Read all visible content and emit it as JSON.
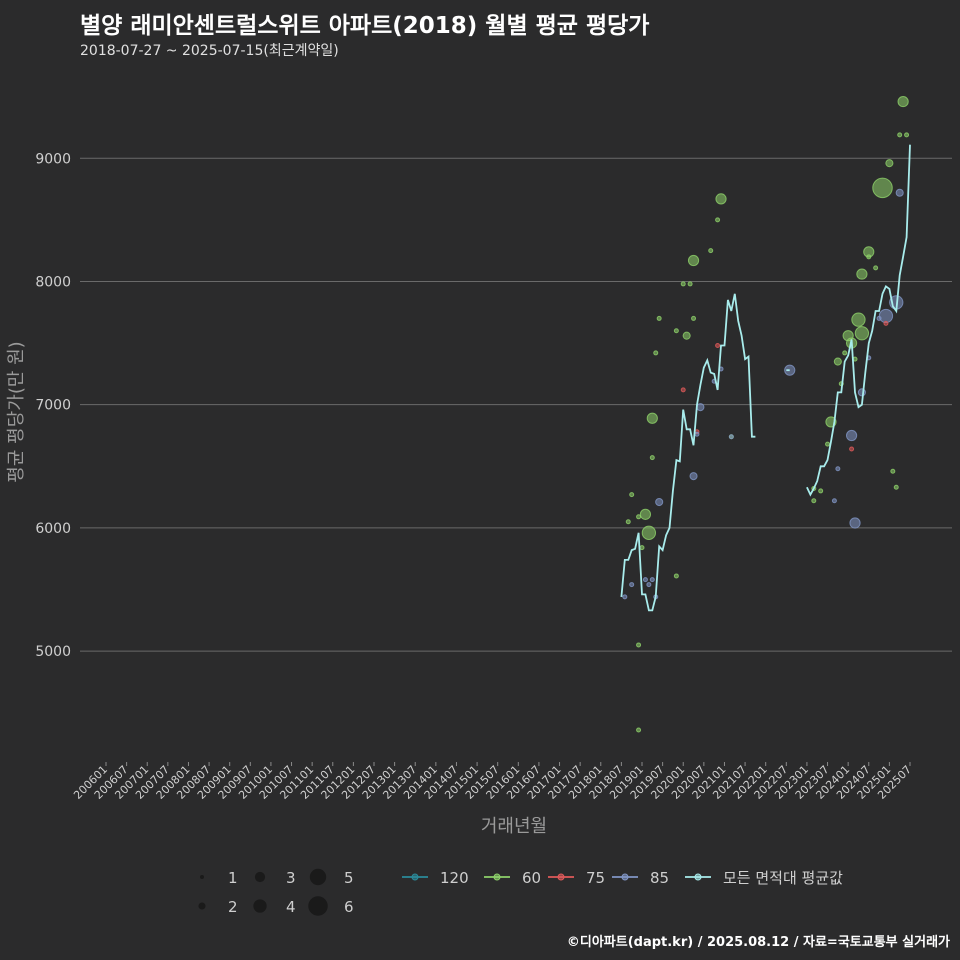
{
  "header": {
    "title": "별양 래미안센트럴스위트 아파트(2018) 월별 평균 평당가",
    "subtitle": "2018-07-27 ~ 2025-07-15(최근계약일)"
  },
  "footer": {
    "source": "©디아파트(dapt.kr) / 2025.08.12 / 자료=국토교통부 실거래가"
  },
  "chart_data": {
    "type": "scatter",
    "title": "별양 래미안센트럴스위트 아파트(2018) 월별 평균 평당가",
    "xlabel": "거래년월",
    "ylabel": "평균 평당가(만 원)",
    "ylim": [
      4100,
      9700
    ],
    "yticks": [
      5000,
      6000,
      7000,
      8000,
      9000
    ],
    "xlim_months": [
      0,
      236
    ],
    "xtick_labels": [
      "200601",
      "200607",
      "200701",
      "200707",
      "200801",
      "200807",
      "200901",
      "200907",
      "201001",
      "201007",
      "201101",
      "201107",
      "201201",
      "201207",
      "201301",
      "201307",
      "201401",
      "201407",
      "201501",
      "201507",
      "201601",
      "201607",
      "201701",
      "201707",
      "201801",
      "201807",
      "201901",
      "201907",
      "202001",
      "202007",
      "202101",
      "202107",
      "202201",
      "202207",
      "202301",
      "202307",
      "202401",
      "202407",
      "202501",
      "202507"
    ],
    "grid": true,
    "size_legend": {
      "values": [
        "1",
        "2",
        "3",
        "4",
        "5",
        "6"
      ]
    },
    "color_legend": [
      {
        "name": "120",
        "color": "#2b8a9a"
      },
      {
        "name": "60",
        "color": "#8ed26a"
      },
      {
        "name": "75",
        "color": "#e05a5a"
      },
      {
        "name": "85",
        "color": "#8196c6"
      },
      {
        "name": "모든 면적대 평균값",
        "color": "#a8ecec"
      }
    ],
    "points": [
      {
        "area": "60",
        "ym": "201809",
        "y": 6050,
        "n": 1
      },
      {
        "area": "60",
        "ym": "201810",
        "y": 6270,
        "n": 1
      },
      {
        "area": "85",
        "ym": "201808",
        "y": 5440,
        "n": 1
      },
      {
        "area": "85",
        "ym": "201810",
        "y": 5540,
        "n": 1
      },
      {
        "area": "60",
        "ym": "201812",
        "y": 6090,
        "n": 1
      },
      {
        "area": "60",
        "ym": "201901",
        "y": 5840,
        "n": 1
      },
      {
        "area": "60",
        "ym": "201902",
        "y": 6110,
        "n": 3
      },
      {
        "area": "60",
        "ym": "201903",
        "y": 5960,
        "n": 4
      },
      {
        "area": "60",
        "ym": "201812",
        "y": 5050,
        "n": 1
      },
      {
        "area": "60",
        "ym": "201812",
        "y": 4360,
        "n": 1
      },
      {
        "area": "85",
        "ym": "201902",
        "y": 5580,
        "n": 1
      },
      {
        "area": "85",
        "ym": "201903",
        "y": 5540,
        "n": 1
      },
      {
        "area": "85",
        "ym": "201904",
        "y": 5580,
        "n": 1
      },
      {
        "area": "85",
        "ym": "201905",
        "y": 5440,
        "n": 1
      },
      {
        "area": "60",
        "ym": "201904",
        "y": 6890,
        "n": 3
      },
      {
        "area": "60",
        "ym": "201904",
        "y": 6570,
        "n": 1
      },
      {
        "area": "60",
        "ym": "201905",
        "y": 7420,
        "n": 1
      },
      {
        "area": "60",
        "ym": "201906",
        "y": 7700,
        "n": 1
      },
      {
        "area": "85",
        "ym": "201906",
        "y": 6210,
        "n": 2
      },
      {
        "area": "60",
        "ym": "201911",
        "y": 7600,
        "n": 1
      },
      {
        "area": "60",
        "ym": "202001",
        "y": 7980,
        "n": 1
      },
      {
        "area": "60",
        "ym": "202002",
        "y": 7560,
        "n": 2
      },
      {
        "area": "60",
        "ym": "202003",
        "y": 7980,
        "n": 1
      },
      {
        "area": "60",
        "ym": "202004",
        "y": 8170,
        "n": 3
      },
      {
        "area": "60",
        "ym": "202004",
        "y": 7700,
        "n": 1
      },
      {
        "area": "75",
        "ym": "202001",
        "y": 7120,
        "n": 1
      },
      {
        "area": "75",
        "ym": "202005",
        "y": 6780,
        "n": 1
      },
      {
        "area": "85",
        "ym": "202005",
        "y": 6760,
        "n": 1
      },
      {
        "area": "85",
        "ym": "202004",
        "y": 6420,
        "n": 2
      },
      {
        "area": "85",
        "ym": "202006",
        "y": 6980,
        "n": 2
      },
      {
        "area": "60",
        "ym": "201911",
        "y": 5610,
        "n": 1
      },
      {
        "area": "60",
        "ym": "202009",
        "y": 8250,
        "n": 1
      },
      {
        "area": "60",
        "ym": "202011",
        "y": 8500,
        "n": 1
      },
      {
        "area": "60",
        "ym": "202012",
        "y": 8670,
        "n": 3
      },
      {
        "area": "75",
        "ym": "202011",
        "y": 7480,
        "n": 1
      },
      {
        "area": "85",
        "ym": "202010",
        "y": 7190,
        "n": 1
      },
      {
        "area": "85",
        "ym": "202012",
        "y": 7290,
        "n": 1
      },
      {
        "area": "60",
        "ym": "202103",
        "y": 6740,
        "n": 1
      },
      {
        "area": "85",
        "ym": "202103",
        "y": 6740,
        "n": 1
      },
      {
        "area": "85",
        "ym": "202208",
        "y": 7280,
        "n": 3
      },
      {
        "area": "60",
        "ym": "202303",
        "y": 6320,
        "n": 1
      },
      {
        "area": "60",
        "ym": "202303",
        "y": 6220,
        "n": 1
      },
      {
        "area": "60",
        "ym": "202305",
        "y": 6300,
        "n": 1
      },
      {
        "area": "60",
        "ym": "202307",
        "y": 6680,
        "n": 1
      },
      {
        "area": "60",
        "ym": "202308",
        "y": 6860,
        "n": 3
      },
      {
        "area": "85",
        "ym": "202309",
        "y": 6220,
        "n": 1
      },
      {
        "area": "85",
        "ym": "202310",
        "y": 6480,
        "n": 1
      },
      {
        "area": "60",
        "ym": "202310",
        "y": 7350,
        "n": 2
      },
      {
        "area": "60",
        "ym": "202311",
        "y": 7170,
        "n": 1
      },
      {
        "area": "60",
        "ym": "202312",
        "y": 7420,
        "n": 1
      },
      {
        "area": "60",
        "ym": "202401",
        "y": 7560,
        "n": 3
      },
      {
        "area": "60",
        "ym": "202402",
        "y": 7500,
        "n": 3
      },
      {
        "area": "85",
        "ym": "202402",
        "y": 6750,
        "n": 3
      },
      {
        "area": "85",
        "ym": "202403",
        "y": 6040,
        "n": 3
      },
      {
        "area": "75",
        "ym": "202402",
        "y": 6640,
        "n": 1
      },
      {
        "area": "60",
        "ym": "202403",
        "y": 7370,
        "n": 1
      },
      {
        "area": "60",
        "ym": "202404",
        "y": 7690,
        "n": 4
      },
      {
        "area": "60",
        "ym": "202405",
        "y": 7580,
        "n": 4
      },
      {
        "area": "60",
        "ym": "202405",
        "y": 8060,
        "n": 3
      },
      {
        "area": "85",
        "ym": "202405",
        "y": 7100,
        "n": 2
      },
      {
        "area": "60",
        "ym": "202407",
        "y": 8240,
        "n": 3
      },
      {
        "area": "60",
        "ym": "202407",
        "y": 8200,
        "n": 1
      },
      {
        "area": "85",
        "ym": "202407",
        "y": 7380,
        "n": 1
      },
      {
        "area": "60",
        "ym": "202409",
        "y": 8110,
        "n": 1
      },
      {
        "area": "85",
        "ym": "202410",
        "y": 7700,
        "n": 1
      },
      {
        "area": "60",
        "ym": "202411",
        "y": 8760,
        "n": 6
      },
      {
        "area": "85",
        "ym": "202412",
        "y": 7720,
        "n": 4
      },
      {
        "area": "75",
        "ym": "202412",
        "y": 7660,
        "n": 1
      },
      {
        "area": "60",
        "ym": "202501",
        "y": 8960,
        "n": 2
      },
      {
        "area": "60",
        "ym": "202502",
        "y": 6460,
        "n": 1
      },
      {
        "area": "60",
        "ym": "202503",
        "y": 6330,
        "n": 1
      },
      {
        "area": "85",
        "ym": "202503",
        "y": 7830,
        "n": 4
      },
      {
        "area": "85",
        "ym": "202504",
        "y": 8720,
        "n": 2
      },
      {
        "area": "60",
        "ym": "202505",
        "y": 9460,
        "n": 3
      },
      {
        "area": "60",
        "ym": "202504",
        "y": 9190,
        "n": 1
      },
      {
        "area": "60",
        "ym": "202506",
        "y": 9190,
        "n": 1
      }
    ],
    "avg_series": [
      {
        "segment": 1,
        "points": [
          [
            "201807",
            5440
          ],
          [
            "201808",
            5740
          ],
          [
            "201809",
            5740
          ],
          [
            "201810",
            5820
          ],
          [
            "201811",
            5830
          ],
          [
            "201812",
            5960
          ],
          [
            "201901",
            5460
          ],
          [
            "201902",
            5460
          ],
          [
            "201903",
            5330
          ],
          [
            "201904",
            5330
          ],
          [
            "201905",
            5440
          ],
          [
            "201906",
            5850
          ],
          [
            "201907",
            5820
          ],
          [
            "201908",
            5940
          ],
          [
            "201909",
            6000
          ],
          [
            "201910",
            6300
          ],
          [
            "201911",
            6550
          ],
          [
            "201912",
            6540
          ],
          [
            "202001",
            6960
          ],
          [
            "202002",
            6800
          ],
          [
            "202003",
            6800
          ],
          [
            "202004",
            6670
          ],
          [
            "202005",
            7000
          ],
          [
            "202006",
            7160
          ],
          [
            "202007",
            7300
          ],
          [
            "202008",
            7360
          ],
          [
            "202009",
            7260
          ],
          [
            "202010",
            7250
          ],
          [
            "202011",
            7120
          ],
          [
            "202012",
            7480
          ],
          [
            "202101",
            7480
          ],
          [
            "202102",
            7850
          ],
          [
            "202103",
            7760
          ],
          [
            "202104",
            7900
          ],
          [
            "202105",
            7680
          ],
          [
            "202106",
            7560
          ],
          [
            "202107",
            7370
          ],
          [
            "202108",
            7390
          ],
          [
            "202109",
            6740
          ],
          [
            "202110",
            6740
          ]
        ]
      },
      {
        "segment": 2,
        "points": [
          [
            "202207",
            7280
          ],
          [
            "202208",
            7280
          ]
        ]
      },
      {
        "segment": 3,
        "points": [
          [
            "202301",
            6330
          ],
          [
            "202302",
            6270
          ],
          [
            "202303",
            6320
          ],
          [
            "202304",
            6380
          ],
          [
            "202305",
            6500
          ],
          [
            "202306",
            6500
          ],
          [
            "202307",
            6550
          ],
          [
            "202308",
            6700
          ],
          [
            "202309",
            6860
          ],
          [
            "202310",
            7100
          ],
          [
            "202311",
            7100
          ],
          [
            "202312",
            7350
          ],
          [
            "202401",
            7400
          ],
          [
            "202402",
            7530
          ],
          [
            "202403",
            7100
          ],
          [
            "202404",
            6980
          ],
          [
            "202405",
            7000
          ],
          [
            "202406",
            7260
          ],
          [
            "202407",
            7500
          ],
          [
            "202408",
            7600
          ],
          [
            "202409",
            7760
          ],
          [
            "202410",
            7760
          ],
          [
            "202411",
            7900
          ],
          [
            "202412",
            7960
          ],
          [
            "202501",
            7940
          ],
          [
            "202502",
            7800
          ],
          [
            "202503",
            7760
          ],
          [
            "202504",
            8050
          ],
          [
            "202505",
            8200
          ],
          [
            "202506",
            8360
          ],
          [
            "202507",
            9110
          ]
        ]
      }
    ]
  }
}
